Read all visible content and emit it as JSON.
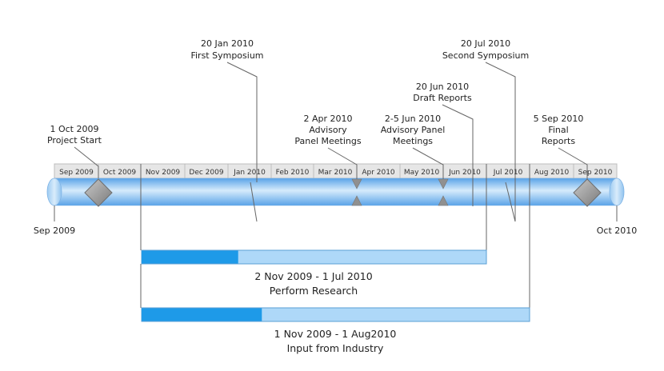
{
  "timeline": {
    "start_label": "Sep 2009",
    "end_label": "Oct 2010",
    "months": [
      "Sep 2009",
      "Oct 2009",
      "Nov 2009",
      "Dec 2009",
      "Jan 2010",
      "Feb 2010",
      "Mar 2010",
      "Apr 2010",
      "May 2010",
      "Jun 2010",
      "Jul 2010",
      "Aug 2010",
      "Sep 2010"
    ]
  },
  "milestones": [
    {
      "id": "project-start",
      "date": "1 Oct 2009",
      "title": "Project Start",
      "shape": "diamond"
    },
    {
      "id": "first-symposium",
      "date": "20 Jan 2010",
      "title": "First Symposium",
      "shape": "line"
    },
    {
      "id": "advisory-panel-meetings-apr",
      "date": "2 Apr 2010",
      "title_1": "Advisory",
      "title_2": "Panel Meetings",
      "shape": "triangles"
    },
    {
      "id": "advisory-panel-meetings-jun",
      "date": "2-5 Jun 2010",
      "title_1": "Advisory Panel",
      "title_2": "Meetings",
      "shape": "triangles"
    },
    {
      "id": "draft-reports",
      "date": "20 Jun 2010",
      "title": "Draft Reports",
      "shape": "line"
    },
    {
      "id": "second-symposium",
      "date": "20 Jul 2010",
      "title": "Second Symposium",
      "shape": "line"
    },
    {
      "id": "final-reports",
      "date": "5 Sep 2010",
      "title_1": "Final",
      "title_2": "Reports",
      "shape": "diamond"
    }
  ],
  "tasks": [
    {
      "id": "perform-research",
      "dates": "2 Nov 2009 - 1 Jul 2010",
      "name": "Perform Research",
      "progress": 0.28
    },
    {
      "id": "input-from-industry",
      "dates": "1 Nov 2009 - 1 Aug2010",
      "name": "Input from Industry",
      "progress": 0.31
    }
  ],
  "colors": {
    "tube_dark": "#5aa3e8",
    "tube_light": "#d6ebfb",
    "task_fill": "#aed8f8",
    "task_done": "#1e9ae8",
    "task_border": "#5a9fd4",
    "marker_gray": "#909090"
  }
}
